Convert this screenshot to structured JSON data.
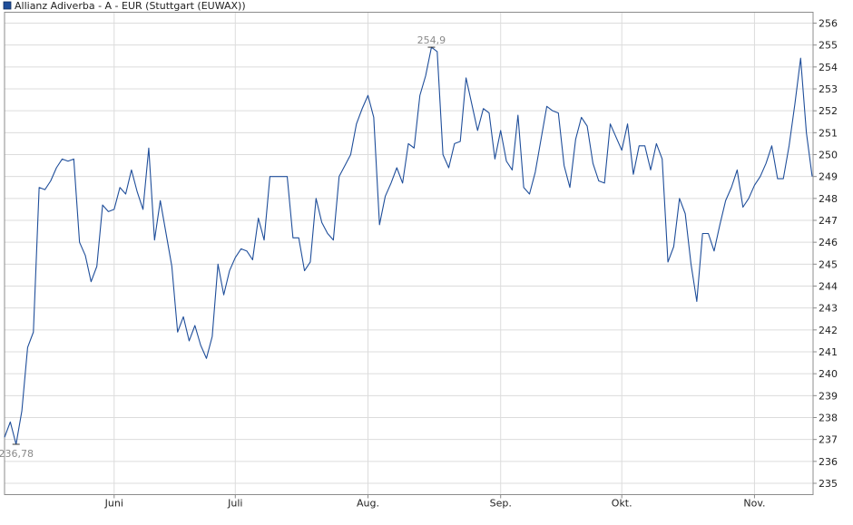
{
  "chart_data": {
    "type": "line",
    "legend": "top-left",
    "grid": true,
    "ylim": [
      234.5,
      256.5
    ],
    "yticks": [
      235,
      236,
      237,
      238,
      239,
      240,
      241,
      242,
      243,
      244,
      245,
      246,
      247,
      248,
      249,
      250,
      251,
      252,
      253,
      254,
      255,
      256
    ],
    "xticks": [
      {
        "label": "Juni",
        "x": 19
      },
      {
        "label": "Juli",
        "x": 40
      },
      {
        "label": "Aug.",
        "x": 63
      },
      {
        "label": "Sep.",
        "x": 86
      },
      {
        "label": "Okt.",
        "x": 107
      },
      {
        "label": "Nov.",
        "x": 130
      }
    ],
    "series": [
      {
        "name": "Allianz Adiverba - A - EUR (Stuttgart (EUWAX))",
        "color": "#1f4e9a",
        "values": [
          237.1,
          237.8,
          236.78,
          238.3,
          241.2,
          241.9,
          248.5,
          248.4,
          248.8,
          249.4,
          249.8,
          249.7,
          249.8,
          246.0,
          245.4,
          244.2,
          244.9,
          247.7,
          247.4,
          247.5,
          248.5,
          248.2,
          249.3,
          248.3,
          247.5,
          250.3,
          246.1,
          247.9,
          246.4,
          244.9,
          241.9,
          242.6,
          241.5,
          242.2,
          241.3,
          240.7,
          241.7,
          245.0,
          243.6,
          244.7,
          245.3,
          245.7,
          245.6,
          245.2,
          247.1,
          246.1,
          249.0,
          249.0,
          249.0,
          249.0,
          246.2,
          246.2,
          244.7,
          245.1,
          248.0,
          246.9,
          246.4,
          246.1,
          249.0,
          249.5,
          250.0,
          251.4,
          252.1,
          252.7,
          251.7,
          246.8,
          248.1,
          248.7,
          249.4,
          248.7,
          250.5,
          250.3,
          252.7,
          253.6,
          254.9,
          254.7,
          250.0,
          249.4,
          250.5,
          250.6,
          253.5,
          252.3,
          251.1,
          252.1,
          251.9,
          249.8,
          251.1,
          249.7,
          249.3,
          251.8,
          248.5,
          248.2,
          249.2,
          250.7,
          252.2,
          252.0,
          251.9,
          249.5,
          248.5,
          250.7,
          251.7,
          251.3,
          249.6,
          248.8,
          248.7,
          251.4,
          250.8,
          250.2,
          251.4,
          249.1,
          250.4,
          250.4,
          249.3,
          250.5,
          249.8,
          245.1,
          245.8,
          248.0,
          247.3,
          245.0,
          243.3,
          246.4,
          246.4,
          245.6,
          246.8,
          247.9,
          248.5,
          249.3,
          247.6,
          248.0,
          248.6,
          249.0,
          249.6,
          250.4,
          248.9,
          248.9,
          250.4,
          252.3,
          254.4,
          251.0,
          249.0
        ]
      }
    ],
    "annotations": [
      {
        "label": "254,9",
        "index": 74,
        "position": "above"
      },
      {
        "label": "236,78",
        "index": 2,
        "position": "below"
      }
    ]
  }
}
